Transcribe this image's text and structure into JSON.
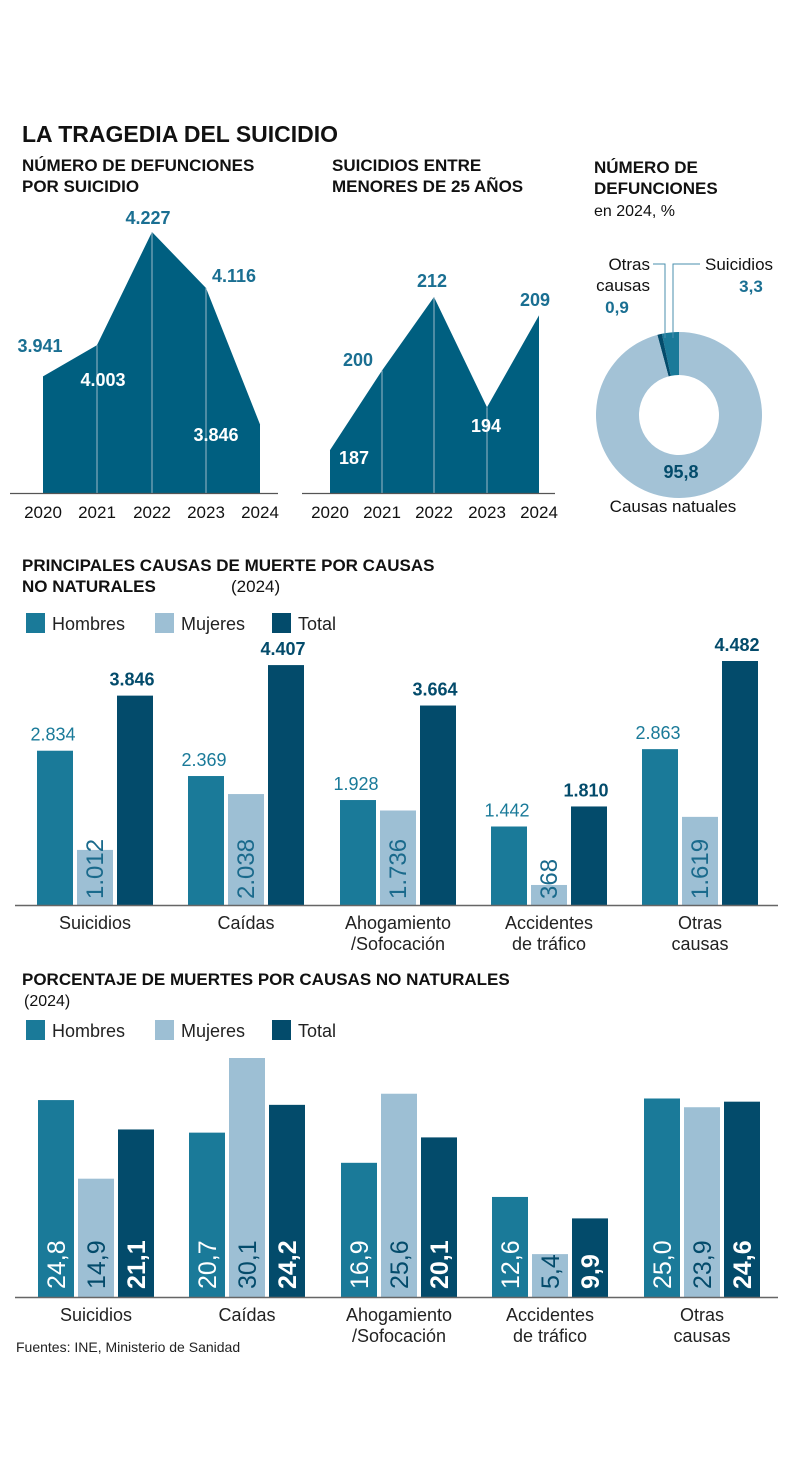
{
  "title": "LA TRAGEDIA DEL SUICIDIO",
  "colors": {
    "area": "#005f80",
    "hombres": "#1a7a99",
    "mujeres": "#9dbfd4",
    "total": "#034b6b",
    "label_blue": "#1a6f92",
    "donut_light": "#a3c2d6"
  },
  "source": "Fuentes: INE, Ministerio de Sanidad",
  "chart_data": [
    {
      "type": "area",
      "title_lines": [
        "NÚMERO DE DEFUNCIONES",
        "POR SUICIDIO"
      ],
      "categories": [
        "2020",
        "2021",
        "2022",
        "2023",
        "2024"
      ],
      "values": [
        3941,
        4003,
        4227,
        4116,
        3846
      ],
      "labels": [
        "3.941",
        "4.003",
        "4.227",
        "4.116",
        "3.846"
      ]
    },
    {
      "type": "area",
      "title_lines": [
        "SUICIDIOS ENTRE",
        "MENORES DE 25 AÑOS"
      ],
      "categories": [
        "2020",
        "2021",
        "2022",
        "2023",
        "2024"
      ],
      "values": [
        187,
        200,
        212,
        194,
        209
      ],
      "labels": [
        "187",
        "200",
        "212",
        "194",
        "209"
      ]
    },
    {
      "type": "pie",
      "title_lines": [
        "NÚMERO DE",
        "DEFUNCIONES"
      ],
      "subtitle": "en 2024, %",
      "slices": [
        {
          "name": "Suicidios",
          "value": 3.3,
          "label": "3,3"
        },
        {
          "name_lines": [
            "Otras",
            "causas"
          ],
          "value": 0.9,
          "label": "0,9"
        },
        {
          "name": "Causas natuales",
          "value": 95.8,
          "label": "95,8"
        }
      ]
    },
    {
      "type": "bar",
      "title_lines": [
        "PRINCIPALES CAUSAS DE MUERTE POR CAUSAS",
        "NO NATURALES"
      ],
      "title_suffix": "(2024)",
      "legend": [
        "Hombres",
        "Mujeres",
        "Total"
      ],
      "categories": [
        [
          "Suicidios"
        ],
        [
          "Caídas"
        ],
        [
          "Ahogamiento",
          "/Sofocación"
        ],
        [
          "Accidentes",
          "de tráfico"
        ],
        [
          "Otras",
          "causas"
        ]
      ],
      "series": [
        {
          "name": "Hombres",
          "values": [
            2834,
            2369,
            1928,
            1442,
            2863
          ],
          "labels": [
            "2.834",
            "2.369",
            "1.928",
            "1.442",
            "2.863"
          ]
        },
        {
          "name": "Mujeres",
          "values": [
            1012,
            2038,
            1736,
            368,
            1619
          ],
          "labels": [
            "1.012",
            "2.038",
            "1.736",
            "368",
            "1.619"
          ]
        },
        {
          "name": "Total",
          "values": [
            3846,
            4407,
            3664,
            1810,
            4482
          ],
          "labels": [
            "3.846",
            "4.407",
            "3.664",
            "1.810",
            "4.482"
          ]
        }
      ]
    },
    {
      "type": "bar",
      "title_lines": [
        "PORCENTAJE DE MUERTES POR CAUSAS NO NATURALES"
      ],
      "title_suffix": "(2024)",
      "legend": [
        "Hombres",
        "Mujeres",
        "Total"
      ],
      "categories": [
        [
          "Suicidios"
        ],
        [
          "Caídas"
        ],
        [
          "Ahogamiento",
          "/Sofocación"
        ],
        [
          "Accidentes",
          "de tráfico"
        ],
        [
          "Otras",
          "causas"
        ]
      ],
      "series": [
        {
          "name": "Hombres",
          "values": [
            24.8,
            20.7,
            16.9,
            12.6,
            25.0
          ],
          "labels": [
            "24,8",
            "20,7",
            "16,9",
            "12,6",
            "25,0"
          ]
        },
        {
          "name": "Mujeres",
          "values": [
            14.9,
            30.1,
            25.6,
            5.4,
            23.9
          ],
          "labels": [
            "14,9",
            "30,1",
            "25,6",
            "5,4",
            "23,9"
          ]
        },
        {
          "name": "Total",
          "values": [
            21.1,
            24.2,
            20.1,
            9.9,
            24.6
          ],
          "labels": [
            "21,1",
            "24,2",
            "20,1",
            "9,9",
            "24,6"
          ]
        }
      ]
    }
  ]
}
